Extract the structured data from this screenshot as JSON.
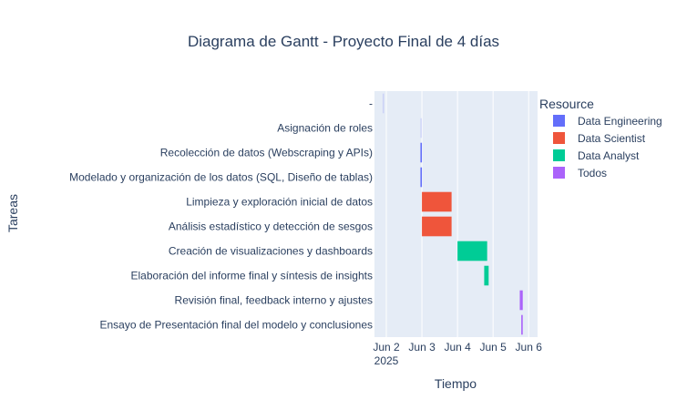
{
  "chart_data": {
    "type": "gantt",
    "title": "Diagrama de Gantt - Proyecto Final de 4 días",
    "xlabel": "Tiempo",
    "ylabel": "Tareas",
    "x_tick_labels": [
      "Jun 2",
      "Jun 3",
      "Jun 4",
      "Jun 5",
      "Jun 6"
    ],
    "x_tick_dates": [
      "2025-06-02",
      "2025-06-03",
      "2025-06-04",
      "2025-06-05",
      "2025-06-06"
    ],
    "x_year_label": "2025",
    "xlim": [
      "2025-06-01 16:00",
      "2025-06-06 06:00"
    ],
    "grid": true,
    "legend": {
      "title": "Resource",
      "placement": "right",
      "entries": [
        {
          "name": "Data Engineering",
          "color": "#636efa"
        },
        {
          "name": "Data Scientist",
          "color": "#ef553b"
        },
        {
          "name": "Data Analyst",
          "color": "#00cc96"
        },
        {
          "name": "Todos",
          "color": "#ab63fa"
        }
      ]
    },
    "tasks": [
      {
        "task": "-",
        "resource": "Data Engineering",
        "start": "2025-06-01 21:30",
        "end": "2025-06-01 22:00",
        "opacity": 0.2
      },
      {
        "task": "Asignación de roles",
        "resource": "Data Engineering",
        "start": "2025-06-02 23:00",
        "end": "2025-06-02 23:30",
        "opacity": 0.2
      },
      {
        "task": "Recolección de datos (Webscraping y APIs)",
        "resource": "Data Engineering",
        "start": "2025-06-02 23:00",
        "end": "2025-06-03 00:00",
        "opacity": 1
      },
      {
        "task": "Modelado y organización de los datos (SQL, Diseño de tablas)",
        "resource": "Data Engineering",
        "start": "2025-06-02 23:00",
        "end": "2025-06-03 00:00",
        "opacity": 1
      },
      {
        "task": "Limpieza y exploración inicial de datos",
        "resource": "Data Scientist",
        "start": "2025-06-03 00:00",
        "end": "2025-06-03 20:00",
        "opacity": 1
      },
      {
        "task": "Análisis estadístico y detección de sesgos",
        "resource": "Data Scientist",
        "start": "2025-06-03 00:00",
        "end": "2025-06-03 20:00",
        "opacity": 1
      },
      {
        "task": "Creación de visualizaciones y dashboards",
        "resource": "Data Analyst",
        "start": "2025-06-04 00:00",
        "end": "2025-06-04 20:00",
        "opacity": 1
      },
      {
        "task": "Elaboración del informe final y síntesis de insights",
        "resource": "Data Analyst",
        "start": "2025-06-04 18:00",
        "end": "2025-06-04 21:00",
        "opacity": 1
      },
      {
        "task": "Revisión final, feedback interno y ajustes",
        "resource": "Todos",
        "start": "2025-06-05 18:00",
        "end": "2025-06-05 20:00",
        "opacity": 1
      },
      {
        "task": "Ensayo de Presentación final del modelo y conclusiones",
        "resource": "Todos",
        "start": "2025-06-05 19:00",
        "end": "2025-06-05 20:00",
        "opacity": 1
      }
    ]
  }
}
